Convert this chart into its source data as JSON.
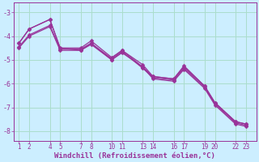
{
  "xlabel": "Windchill (Refroidissement éolien,°C)",
  "background_color": "#cceeff",
  "grid_color": "#aaddcc",
  "line_color": "#993399",
  "series": [
    [
      1,
      -4.3,
      2,
      -3.7,
      4,
      -3.3,
      5,
      -4.5,
      7,
      -4.5,
      8,
      -4.2,
      10,
      -4.9,
      11,
      -4.6,
      13,
      -5.2,
      14,
      -5.7,
      16,
      -5.8,
      17,
      -5.3,
      19,
      -6.1,
      20,
      -6.8,
      22,
      -7.6,
      23,
      -7.7
    ],
    [
      1,
      -4.3,
      2,
      -3.7,
      4,
      -3.3,
      5,
      -4.5,
      7,
      -4.6,
      8,
      -4.3,
      10,
      -5.0,
      11,
      -4.7,
      13,
      -5.3,
      14,
      -5.8,
      16,
      -5.9,
      17,
      -5.4,
      19,
      -6.2,
      20,
      -6.9,
      22,
      -7.7,
      23,
      -7.8
    ],
    [
      1,
      -4.5,
      2,
      -4.0,
      4,
      -3.6,
      5,
      -4.6,
      7,
      -4.6,
      8,
      -4.35,
      10,
      -5.0,
      11,
      -4.65,
      13,
      -5.35,
      14,
      -5.75,
      16,
      -5.85,
      17,
      -5.35,
      19,
      -6.15,
      20,
      -6.85,
      22,
      -7.65,
      23,
      -7.75
    ],
    [
      1,
      -4.45,
      2,
      -3.95,
      4,
      -3.55,
      5,
      -4.55,
      7,
      -4.55,
      8,
      -4.3,
      10,
      -4.95,
      11,
      -4.6,
      13,
      -5.3,
      14,
      -5.7,
      16,
      -5.8,
      17,
      -5.25,
      19,
      -6.1,
      20,
      -6.8,
      22,
      -7.6,
      23,
      -7.7
    ]
  ],
  "xlim": [
    0.5,
    24
  ],
  "ylim": [
    -8.4,
    -2.6
  ],
  "yticks": [
    -3,
    -4,
    -5,
    -6,
    -7,
    -8
  ],
  "xtick_positions": [
    1,
    2,
    4,
    5,
    7,
    8,
    10,
    11,
    13,
    14,
    16,
    17,
    19,
    20,
    22,
    23
  ],
  "xtick_labels": [
    "1",
    "2",
    "4",
    "5",
    "7",
    "8",
    "10",
    "11",
    "13",
    "14",
    "16",
    "17",
    "19",
    "20",
    "22",
    "23"
  ],
  "xlabel_fontsize": 6.5,
  "tick_fontsize": 5.5,
  "ytick_fontsize": 6.0,
  "line_width": 0.9,
  "marker_size": 2.5
}
